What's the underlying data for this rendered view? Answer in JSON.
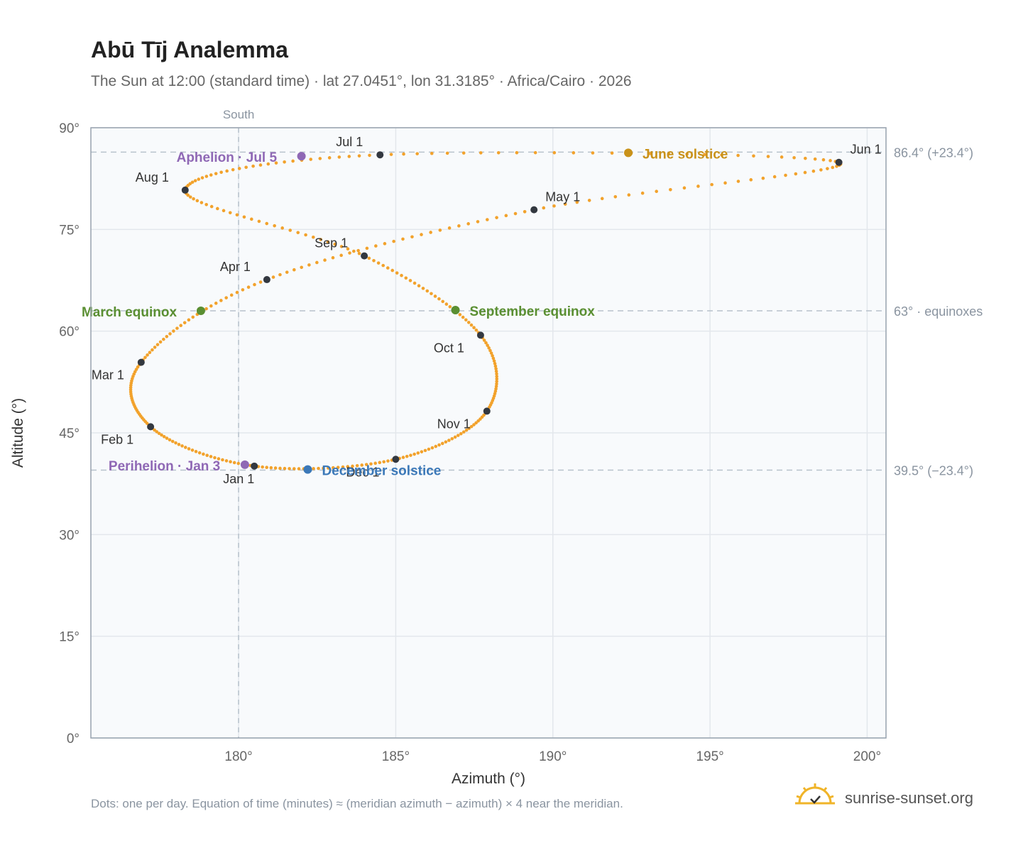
{
  "header": {
    "title": "Abū Tīj Analemma",
    "subtitle": "The Sun at 12:00 (standard time) · lat 27.0451°, lon 31.3185° · Africa/Cairo · 2026"
  },
  "footer": {
    "note": "Dots: one per day. Equation of time (minutes) ≈ (meridian azimuth − azimuth) × 4 near the meridian.",
    "brand": "sunrise-sunset.org"
  },
  "colors": {
    "path": "#f2a22c",
    "month_dot": "#333840",
    "equinox": "#5a8f32",
    "june_solstice": "#c9921a",
    "december_solstice": "#3b78b8",
    "apsis": "#8f68b5",
    "grid": "#e3e7ec",
    "reference": "#b7c2cc",
    "plot_bg": "#f8fafc"
  },
  "chart_data": {
    "type": "scatter",
    "xlabel": "Azimuth (°)",
    "ylabel": "Altitude (°)",
    "xlim": [
      175.3,
      200.6
    ],
    "ylim": [
      0,
      90
    ],
    "xticks": [
      {
        "value": 180,
        "label": "180°"
      },
      {
        "value": 185,
        "label": "185°"
      },
      {
        "value": 190,
        "label": "190°"
      },
      {
        "value": 195,
        "label": "195°"
      },
      {
        "value": 200,
        "label": "200°"
      }
    ],
    "yticks": [
      {
        "value": 0,
        "label": "0°"
      },
      {
        "value": 15,
        "label": "15°"
      },
      {
        "value": 30,
        "label": "30°"
      },
      {
        "value": 45,
        "label": "45°"
      },
      {
        "value": 60,
        "label": "60°"
      },
      {
        "value": 75,
        "label": "75°"
      },
      {
        "value": 90,
        "label": "90°"
      }
    ],
    "grid": true,
    "meridian": {
      "x": 180,
      "label": "South"
    },
    "reference_lines": [
      {
        "y": 86.4,
        "label": "86.4° (+23.4°)"
      },
      {
        "y": 63.0,
        "label": "63° · equinoxes"
      },
      {
        "y": 39.5,
        "label": "39.5° (−23.4°)"
      }
    ],
    "month_markers": [
      {
        "label": "Jan 1",
        "x": 180.5,
        "y": 40.1
      },
      {
        "label": "Feb 1",
        "x": 177.2,
        "y": 45.9
      },
      {
        "label": "Mar 1",
        "x": 176.9,
        "y": 55.4
      },
      {
        "label": "Apr 1",
        "x": 180.9,
        "y": 67.6
      },
      {
        "label": "May 1",
        "x": 189.4,
        "y": 77.9
      },
      {
        "label": "Jun 1",
        "x": 199.1,
        "y": 84.9
      },
      {
        "label": "Jul 1",
        "x": 184.5,
        "y": 86.0
      },
      {
        "label": "Aug 1",
        "x": 178.3,
        "y": 80.8
      },
      {
        "label": "Sep 1",
        "x": 184.0,
        "y": 71.1
      },
      {
        "label": "Oct 1",
        "x": 187.7,
        "y": 59.4
      },
      {
        "label": "Nov 1",
        "x": 187.9,
        "y": 48.2
      },
      {
        "label": "Dec 1",
        "x": 185.0,
        "y": 41.1
      }
    ],
    "events": [
      {
        "label": "March equinox",
        "x": 178.8,
        "y": 63.0,
        "kind": "equinox"
      },
      {
        "label": "June solstice",
        "x": 192.4,
        "y": 86.3,
        "kind": "june_solstice"
      },
      {
        "label": "September equinox",
        "x": 186.9,
        "y": 63.1,
        "kind": "equinox"
      },
      {
        "label": "December solstice",
        "x": 182.2,
        "y": 39.6,
        "kind": "december_solstice"
      },
      {
        "label": "Perihelion · Jan 3",
        "x": 180.2,
        "y": 40.3,
        "kind": "apsis"
      },
      {
        "label": "Aphelion · Jul 5",
        "x": 182.0,
        "y": 85.8,
        "kind": "apsis"
      }
    ]
  }
}
